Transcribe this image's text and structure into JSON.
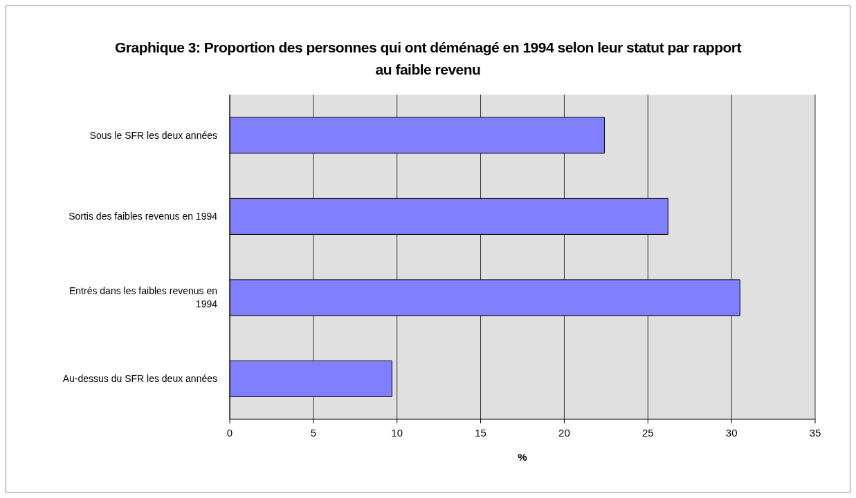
{
  "chart_data": {
    "type": "bar",
    "orientation": "horizontal",
    "title": "Graphique 3:  Proportion des personnes qui ont déménagé en 1994 selon leur statut par rapport au faible revenu",
    "xlabel": "%",
    "categories": [
      "Sous le SFR les deux années",
      "Sortis des faibles revenus en 1994",
      "Entrés dans les faibles revenus en 1994",
      "Au-dessus du SFR les deux années"
    ],
    "values": [
      22.4,
      26.2,
      30.5,
      9.7
    ],
    "color": "#8080ff",
    "xlim": [
      0,
      35
    ],
    "xticks": [
      0,
      5,
      10,
      15,
      20,
      25,
      30,
      35
    ],
    "grid": "x",
    "legend": false
  }
}
